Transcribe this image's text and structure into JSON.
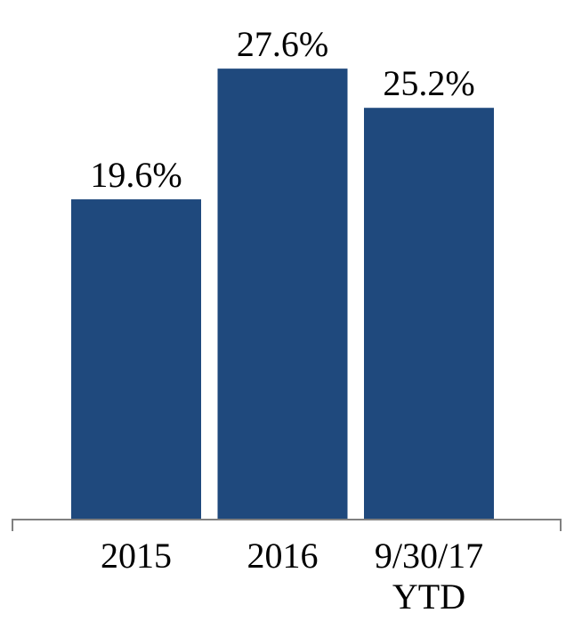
{
  "chart_data": {
    "type": "bar",
    "title": "",
    "xlabel": "",
    "ylabel": "",
    "categories": [
      [
        "2015"
      ],
      [
        "2016"
      ],
      [
        "9/30/17",
        "YTD"
      ]
    ],
    "values": [
      19.6,
      27.6,
      25.2
    ],
    "data_labels": [
      "19.6%",
      "27.6%",
      "25.2%"
    ],
    "ylim": [
      0,
      31.8
    ],
    "grid": false,
    "legend": "none",
    "bar_color": "#1f497d",
    "axis_color": "#808080"
  }
}
